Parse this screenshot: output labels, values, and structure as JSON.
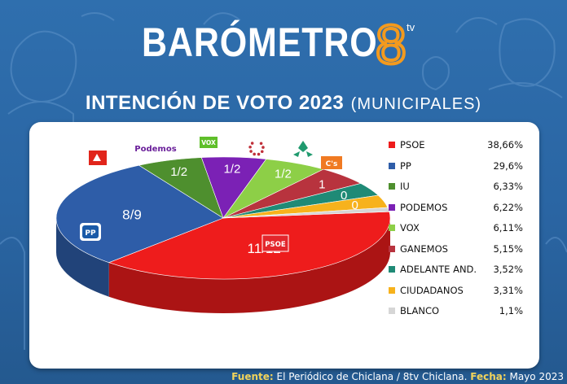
{
  "header": {
    "title": "BARÓMETRO",
    "logo_text": "8",
    "logo_suffix": "tv",
    "subtitle": "INTENCIÓN DE VOTO 2023",
    "subtitle_paren": "(MUNICIPALES)"
  },
  "chart_data": {
    "type": "pie",
    "title": "INTENCIÓN DE VOTO 2023 (MUNICIPALES)",
    "series": [
      {
        "name": "PSOE",
        "value": 38.66,
        "label": "38,66%",
        "seats": "11/12",
        "color": "#ee1c1c"
      },
      {
        "name": "PP",
        "value": 29.6,
        "label": "29,6%",
        "seats": "8/9",
        "color": "#2e5da8"
      },
      {
        "name": "IU",
        "value": 6.33,
        "label": "6,33%",
        "seats": "1/2",
        "color": "#4e8f2e"
      },
      {
        "name": "PODEMOS",
        "value": 6.22,
        "label": "6,22%",
        "seats": "1/2",
        "color": "#7b21b5"
      },
      {
        "name": "VOX",
        "value": 6.11,
        "label": "6,11%",
        "seats": "1/2",
        "color": "#8dcf47"
      },
      {
        "name": "GANEMOS",
        "value": 5.15,
        "label": "5,15%",
        "seats": "1",
        "color": "#b8333e"
      },
      {
        "name": "ADELANTE AND.",
        "value": 3.52,
        "label": "3,52%",
        "seats": "0",
        "color": "#1f8a76"
      },
      {
        "name": "CIUDADANOS",
        "value": 3.31,
        "label": "3,31%",
        "seats": "0",
        "color": "#f7b21c"
      },
      {
        "name": "BLANCO",
        "value": 1.1,
        "label": "1,1%",
        "seats": "",
        "color": "#d6d6d6"
      }
    ],
    "legend_position": "right",
    "party_logos": {
      "psoe_badge": "PSOE",
      "pp_badge": "PP",
      "podemos": "Podemos",
      "vox": "VOX",
      "cs": "C's"
    }
  },
  "footer": {
    "source_label": "Fuente:",
    "source_value": "El Periódico de Chiclana / 8tv Chiclana.",
    "date_label": "Fecha:",
    "date_value": "Mayo 2023"
  }
}
